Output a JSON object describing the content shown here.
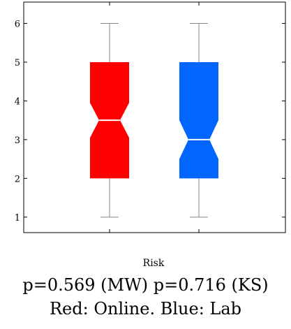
{
  "chart_data": {
    "type": "box",
    "notched": true,
    "xlabel": "Risk",
    "ylim": [
      0.6,
      6.55
    ],
    "y_ticks": [
      1,
      2,
      3,
      4,
      5,
      6
    ],
    "grid": false,
    "series": [
      {
        "min": 1,
        "q1": 2,
        "median": 3.5,
        "q3": 5,
        "max": 6,
        "notch_low": 3.05,
        "notch_high": 3.95,
        "color": "#ff0000"
      },
      {
        "min": 1,
        "q1": 2,
        "median": 3.0,
        "q3": 5,
        "max": 6,
        "notch_low": 2.5,
        "notch_high": 3.5,
        "color": "#0066ff"
      }
    ]
  },
  "captions": {
    "line1": "p=0.569 (MW) p=0.716 (KS)",
    "line2": "Red: Online. Blue: Lab"
  }
}
